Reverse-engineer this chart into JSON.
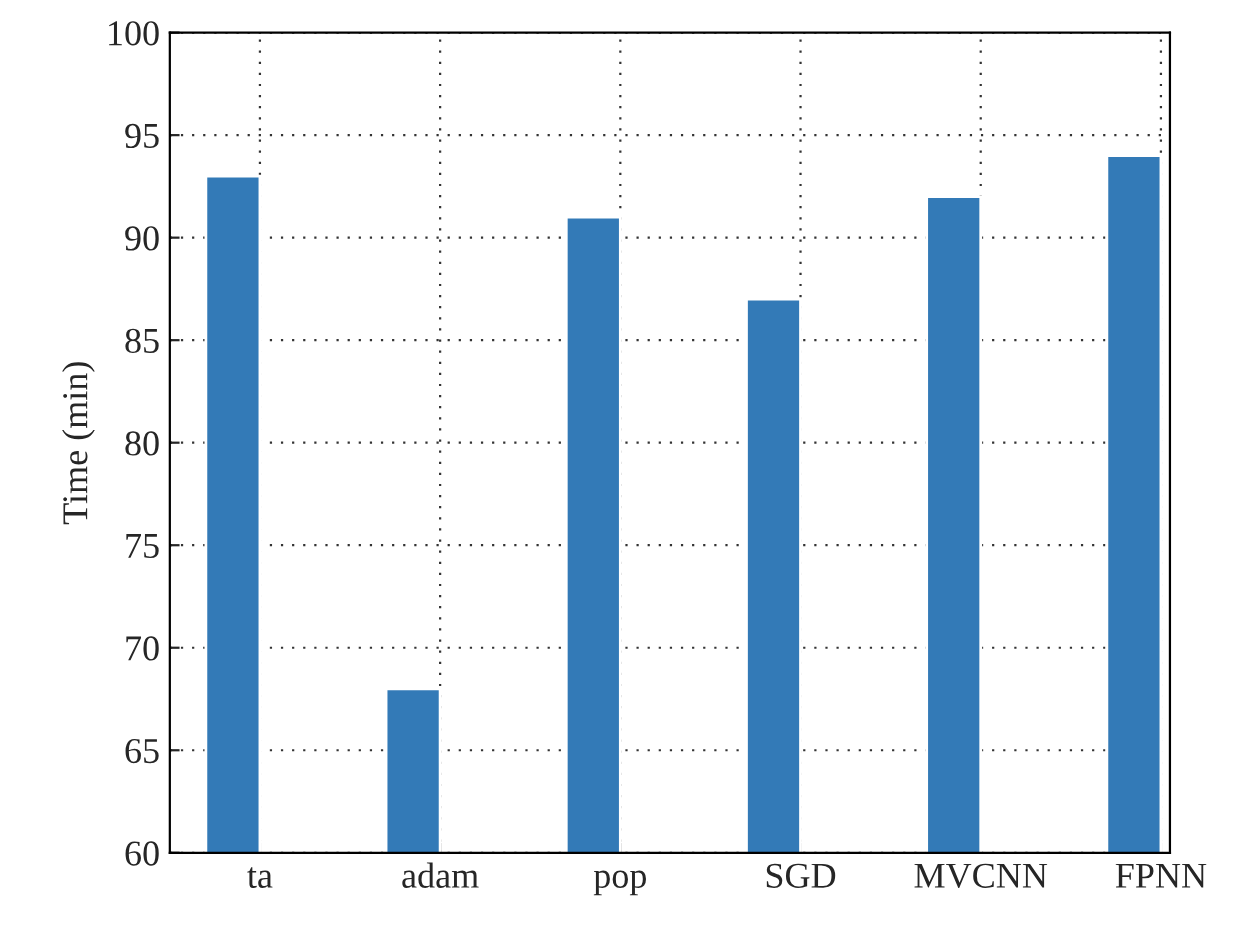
{
  "chart_data": {
    "type": "bar",
    "ylabel": "Time (min)",
    "categories": [
      "ta",
      "adam",
      "pop",
      "SGD",
      "MVCNN",
      "FPNN"
    ],
    "values": [
      93,
      68,
      91,
      87,
      92,
      94
    ],
    "color": "#337ab7",
    "ylim": [
      60,
      100
    ],
    "yticks": [
      60,
      65,
      70,
      75,
      80,
      85,
      90,
      95,
      100
    ],
    "grid": true
  }
}
